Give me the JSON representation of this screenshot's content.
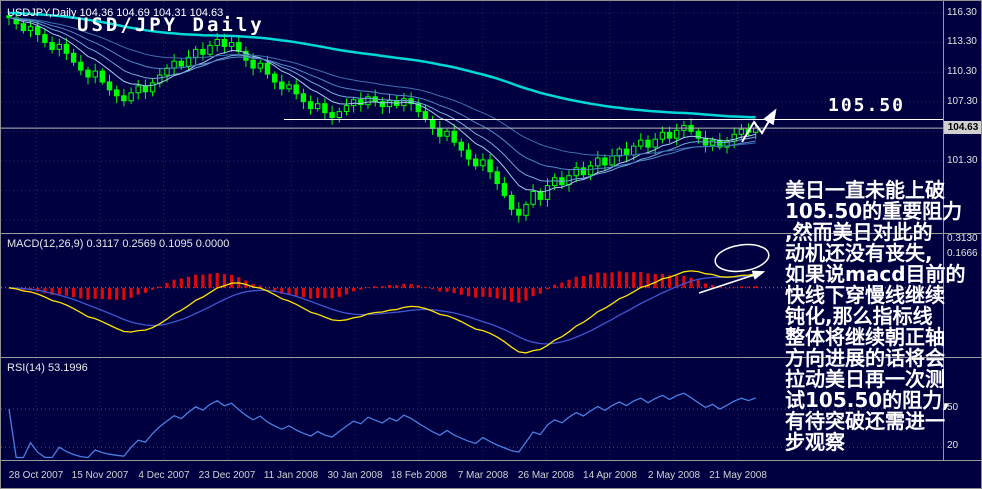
{
  "header": {
    "symbol_info": "USDJPY,Daily 104.36 104.69 104.31 104.63",
    "title": "USD/JPY Daily"
  },
  "price_panel": {
    "axis": [
      {
        "label": "116.30",
        "value": 116.3
      },
      {
        "label": "113.30",
        "value": 113.3
      },
      {
        "label": "110.30",
        "value": 110.3
      },
      {
        "label": "107.30",
        "value": 107.3
      },
      {
        "label": "101.30",
        "value": 101.3
      }
    ],
    "current_price": "104.63",
    "current_price_value": 104.63,
    "resistance_label": "105.50",
    "resistance_level": 105.5
  },
  "macd_panel": {
    "label": "MACD(12,26,9) 0.3117 0.2569 0.1095 0.0000",
    "axis": [
      {
        "label": "0.3130",
        "top": 232
      },
      {
        "label": "0.1666",
        "top": 247
      }
    ]
  },
  "rsi_panel": {
    "label": "RSI(14) 53.1996",
    "levels": [
      50,
      20
    ],
    "axis": [
      {
        "label": "50",
        "top": 401
      },
      {
        "label": "20",
        "top": 439
      }
    ]
  },
  "x_axis": {
    "dates": [
      "28 Oct 2007",
      "15 Nov 2007",
      "4 Dec 2007",
      "23 Dec 2007",
      "11 Jan 2008",
      "30 Jan 2008",
      "18 Feb 2008",
      "7 Mar 2008",
      "26 Mar 2008",
      "14 Apr 2008",
      "2 May 2008",
      "21 May 2008"
    ]
  },
  "annotation": {
    "lines": [
      "美日一直未能上破",
      "105.50的重要阻力",
      ",然而美日对此的",
      "动机还没有丧失,",
      "如果说macd目前的",
      "快线下穿慢线继续",
      "钝化,那么指标线",
      "整体将继续朝正轴",
      "方向进展的话将会",
      "拉动美日再一次测",
      "试105.50的阻力,",
      "有待突破还需进一",
      "步观察"
    ]
  },
  "chart_data": {
    "type": "candlestick",
    "symbol": "USDJPY",
    "timeframe": "Daily",
    "title": "USD/JPY Daily",
    "open": 104.36,
    "high": 104.69,
    "low": 104.31,
    "close": 104.63,
    "ylim": [
      94,
      117.5
    ],
    "y_ticks": [
      116.3,
      113.3,
      110.3,
      107.3,
      104.3,
      101.3,
      98.3,
      95.3
    ],
    "x_tick_labels": [
      "28 Oct 2007",
      "15 Nov 2007",
      "4 Dec 2007",
      "23 Dec 2007",
      "11 Jan 2008",
      "30 Jan 2008",
      "18 Feb 2008",
      "7 Mar 2008",
      "26 Mar 2008",
      "14 Apr 2008",
      "2 May 2008",
      "21 May 2008"
    ],
    "closes": [
      115.8,
      115.2,
      114.5,
      114.9,
      114.1,
      113.3,
      112.6,
      113.1,
      112.2,
      111.3,
      110.5,
      109.8,
      110.4,
      109.3,
      108.5,
      107.9,
      107.4,
      108.2,
      108.9,
      108.3,
      109.2,
      110.0,
      110.7,
      111.4,
      110.9,
      111.8,
      112.6,
      112.1,
      113.0,
      113.6,
      112.9,
      113.3,
      112.4,
      111.5,
      110.7,
      111.2,
      110.1,
      109.3,
      108.6,
      109.0,
      108.1,
      107.3,
      106.6,
      107.1,
      106.2,
      105.7,
      106.3,
      106.9,
      107.5,
      107.0,
      107.8,
      107.3,
      106.8,
      107.4,
      106.9,
      107.6,
      107.1,
      106.3,
      105.5,
      104.6,
      103.8,
      104.3,
      103.2,
      102.4,
      101.5,
      100.8,
      101.4,
      100.2,
      99.0,
      97.8,
      96.4,
      95.8,
      96.9,
      98.2,
      97.4,
      98.8,
      99.6,
      98.9,
      99.8,
      100.6,
      99.9,
      100.8,
      101.6,
      100.9,
      101.8,
      102.5,
      101.9,
      102.8,
      103.4,
      102.7,
      103.5,
      104.2,
      103.6,
      104.4,
      104.9,
      104.3,
      103.6,
      102.9,
      103.4,
      102.7,
      103.3,
      104.0,
      104.5,
      104.2,
      104.63
    ],
    "ma_periods": [
      8,
      13,
      21,
      34
    ],
    "slow_ma_alpha": 0.02,
    "slow_ma_seed": 116.3,
    "indicators": [
      {
        "name": "MACD",
        "params": [
          12,
          26,
          9
        ],
        "readout": [
          0.3117,
          0.2569,
          0.1095,
          0.0
        ]
      },
      {
        "name": "RSI",
        "params": [
          14
        ],
        "readout": 53.1996
      }
    ],
    "overlays": {
      "resistance": 105.5,
      "bid_line": 104.63
    }
  },
  "colors": {
    "background": "#000040",
    "candle": "#00ff00",
    "slow_ma": "#00d8d8",
    "fan_ma": [
      "#a8cdee",
      "#74a9dd",
      "#5189c9",
      "#3d6fb0"
    ],
    "macd_hist": "#dd0a0a",
    "macd_line": "#ffe400",
    "macd_signal": "#4055d0",
    "rsi_line": "#4a7de0",
    "grid": "#1e2d62",
    "separator": "#9a9a9a",
    "resistance_line": "#ffffff",
    "bid_line_color": "#b8b8b8",
    "price_tag_bg": "#d0d0d0"
  }
}
